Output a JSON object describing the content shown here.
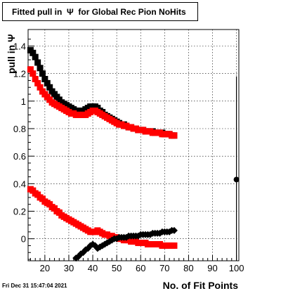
{
  "chart_data": {
    "type": "scatter",
    "title": "Fitted pull in  Ψ  for Global Rec Pion NoHits",
    "xlabel": "No. of Fit Points",
    "ylabel": "pull in Ψ",
    "footer": "Fri Dec 31 15:47:04 2021",
    "xlim": [
      13,
      101
    ],
    "ylim": [
      -0.16,
      1.52
    ],
    "x_ticks": [
      20,
      30,
      40,
      50,
      60,
      70,
      80,
      90,
      100
    ],
    "y_ticks": [
      0,
      0.2,
      0.4,
      0.6,
      0.8,
      1,
      1.2,
      1.4
    ],
    "y_tick_labels": [
      "0",
      "0.2",
      "0.4",
      "0.6",
      "0.8",
      "1",
      "1.2",
      "1.4"
    ],
    "grid": true,
    "series": [
      {
        "color": "#000000",
        "marker": "square",
        "x": [
          14,
          15,
          16,
          17,
          18,
          19,
          20,
          21,
          22,
          23,
          24,
          25,
          26,
          27,
          28,
          29,
          30,
          31,
          32,
          33,
          34,
          35,
          36,
          37,
          38,
          39,
          40,
          41,
          42,
          43,
          44,
          45,
          46,
          47,
          48,
          49,
          50,
          51,
          52,
          53,
          54,
          55,
          56,
          57,
          58,
          59,
          60,
          61,
          62,
          63,
          64,
          65,
          66,
          67,
          68,
          69,
          70,
          71,
          72,
          73,
          74
        ],
        "y": [
          1.37,
          1.35,
          1.32,
          1.28,
          1.24,
          1.2,
          1.16,
          1.13,
          1.1,
          1.07,
          1.05,
          1.03,
          1.01,
          0.99,
          0.98,
          0.97,
          0.96,
          0.95,
          0.94,
          0.93,
          0.93,
          0.93,
          0.93,
          0.94,
          0.95,
          0.96,
          0.96,
          0.96,
          0.95,
          0.93,
          0.92,
          0.9,
          0.89,
          0.88,
          0.87,
          0.86,
          0.85,
          0.84,
          0.83,
          0.83,
          0.82,
          0.81,
          0.81,
          0.8,
          0.8,
          0.79,
          0.79,
          0.79,
          0.78,
          0.78,
          0.78,
          0.78,
          0.77,
          0.77,
          0.77,
          0.77,
          0.76,
          0.76,
          0.76,
          0.75,
          0.75
        ]
      },
      {
        "color": "#ff0000",
        "marker": "square",
        "x": [
          14,
          15,
          16,
          17,
          18,
          19,
          20,
          21,
          22,
          23,
          24,
          25,
          26,
          27,
          28,
          29,
          30,
          31,
          32,
          33,
          34,
          35,
          36,
          37,
          38,
          39,
          40,
          41,
          42,
          43,
          44,
          45,
          46,
          47,
          48,
          49,
          50,
          51,
          52,
          53,
          54,
          55,
          56,
          57,
          58,
          59,
          60,
          61,
          62,
          63,
          64,
          65,
          66,
          67,
          68,
          69,
          70,
          71,
          72,
          73,
          74
        ],
        "y": [
          1.23,
          1.2,
          1.16,
          1.13,
          1.1,
          1.07,
          1.05,
          1.03,
          1.01,
          0.99,
          0.98,
          0.97,
          0.96,
          0.95,
          0.94,
          0.93,
          0.92,
          0.91,
          0.91,
          0.9,
          0.9,
          0.9,
          0.9,
          0.9,
          0.91,
          0.92,
          0.93,
          0.93,
          0.92,
          0.91,
          0.9,
          0.89,
          0.88,
          0.87,
          0.86,
          0.85,
          0.84,
          0.83,
          0.83,
          0.82,
          0.82,
          0.81,
          0.81,
          0.8,
          0.8,
          0.79,
          0.79,
          0.79,
          0.78,
          0.78,
          0.78,
          0.77,
          0.77,
          0.77,
          0.77,
          0.76,
          0.76,
          0.76,
          0.76,
          0.75,
          0.75
        ]
      },
      {
        "color": "#ff0000",
        "marker": "square",
        "x": [
          14,
          15,
          16,
          17,
          18,
          19,
          20,
          21,
          22,
          23,
          24,
          25,
          26,
          27,
          28,
          29,
          30,
          31,
          32,
          33,
          34,
          35,
          36,
          37,
          38,
          39,
          40,
          41,
          42,
          43,
          44,
          45,
          46,
          47,
          48,
          49,
          50,
          51,
          52,
          53,
          54,
          55,
          56,
          57,
          58,
          59,
          60,
          61,
          62,
          63,
          64,
          65,
          66,
          67,
          68,
          69,
          70,
          71,
          72,
          73,
          74
        ],
        "y": [
          0.36,
          0.35,
          0.33,
          0.32,
          0.3,
          0.29,
          0.27,
          0.26,
          0.25,
          0.23,
          0.22,
          0.2,
          0.19,
          0.17,
          0.16,
          0.15,
          0.14,
          0.13,
          0.12,
          0.11,
          0.1,
          0.09,
          0.08,
          0.07,
          0.06,
          0.05,
          0.05,
          0.05,
          0.06,
          0.05,
          0.04,
          0.03,
          0.03,
          0.02,
          0.02,
          0.01,
          0.01,
          0.0,
          0.0,
          -0.01,
          -0.01,
          -0.01,
          -0.02,
          -0.02,
          -0.02,
          -0.03,
          -0.03,
          -0.03,
          -0.03,
          -0.04,
          -0.04,
          -0.04,
          -0.04,
          -0.04,
          -0.04,
          -0.05,
          -0.05,
          -0.05,
          -0.05,
          -0.05,
          -0.05
        ]
      },
      {
        "color": "#000000",
        "marker": "diamond",
        "x": [
          33,
          34,
          35,
          36,
          37,
          38,
          39,
          40,
          41,
          42,
          43,
          44,
          45,
          46,
          47,
          48,
          49,
          50,
          51,
          52,
          53,
          54,
          55,
          56,
          57,
          58,
          59,
          60,
          61,
          62,
          63,
          64,
          65,
          66,
          67,
          68,
          69,
          70,
          71,
          72,
          73,
          74
        ],
        "y": [
          -0.14,
          -0.13,
          -0.11,
          -0.1,
          -0.08,
          -0.07,
          -0.05,
          -0.04,
          -0.05,
          -0.07,
          -0.06,
          -0.05,
          -0.04,
          -0.03,
          -0.02,
          -0.01,
          0.0,
          0.0,
          0.01,
          0.01,
          0.01,
          0.01,
          0.02,
          0.02,
          0.02,
          0.02,
          0.02,
          0.03,
          0.03,
          0.03,
          0.03,
          0.03,
          0.04,
          0.04,
          0.04,
          0.04,
          0.05,
          0.05,
          0.05,
          0.05,
          0.06,
          0.06
        ]
      },
      {
        "color": "#000000",
        "marker": "circle",
        "x": [
          100
        ],
        "y": [
          0.43
        ],
        "yerr": [
          0.75
        ]
      }
    ]
  }
}
